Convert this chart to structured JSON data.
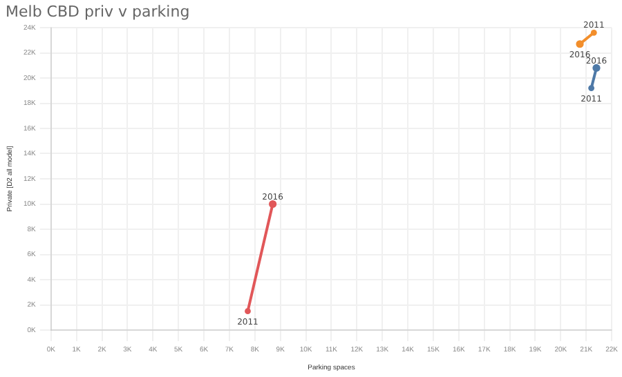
{
  "chart_data": {
    "type": "line",
    "title": "Melb CBD priv v parking",
    "xlabel": "Parking spaces",
    "ylabel": "Private [D2 all model]",
    "series": [
      {
        "color": "#e15759",
        "x": [
          7.72,
          8.7
        ],
        "values": [
          1.5,
          10
        ]
      },
      {
        "color": "#f28e2b",
        "x": [
          21.3,
          20.75
        ],
        "values": [
          23.6,
          22.7
        ]
      },
      {
        "color": "#4e79a7",
        "x": [
          21.2,
          21.4
        ],
        "values": [
          19.2,
          20.8
        ]
      }
    ],
    "annotations": [
      {
        "text": "2011",
        "x": 7.72,
        "y": 1.5
      },
      {
        "text": "2016",
        "x": 8.7,
        "y": 10
      },
      {
        "text": "2011",
        "x": 21.3,
        "y": 23.6
      },
      {
        "text": "2016",
        "x": 20.75,
        "y": 22.7
      },
      {
        "text": "2011",
        "x": 21.2,
        "y": 19.2
      },
      {
        "text": "2016",
        "x": 21.4,
        "y": 20.8
      }
    ],
    "xlim": [
      0,
      22
    ],
    "ylim": [
      0,
      24
    ],
    "xticks": [
      {
        "value": 0,
        "label": "0K"
      },
      {
        "value": 1,
        "label": "1K"
      },
      {
        "value": 2,
        "label": "2K"
      },
      {
        "value": 3,
        "label": "3K"
      },
      {
        "value": 4,
        "label": "4K"
      },
      {
        "value": 5,
        "label": "5K"
      },
      {
        "value": 6,
        "label": "6K"
      },
      {
        "value": 7,
        "label": "7K"
      },
      {
        "value": 8,
        "label": "8K"
      },
      {
        "value": 9,
        "label": "9K"
      },
      {
        "value": 10,
        "label": "10K"
      },
      {
        "value": 11,
        "label": "11K"
      },
      {
        "value": 12,
        "label": "12K"
      },
      {
        "value": 13,
        "label": "13K"
      },
      {
        "value": 14,
        "label": "14K"
      },
      {
        "value": 15,
        "label": "15K"
      },
      {
        "value": 16,
        "label": "16K"
      },
      {
        "value": 17,
        "label": "17K"
      },
      {
        "value": 18,
        "label": "18K"
      },
      {
        "value": 19,
        "label": "19K"
      },
      {
        "value": 20,
        "label": "20K"
      },
      {
        "value": 21,
        "label": "21K"
      },
      {
        "value": 22,
        "label": "22K"
      }
    ],
    "yticks": [
      {
        "value": 0,
        "label": "0K"
      },
      {
        "value": 2,
        "label": "2K"
      },
      {
        "value": 4,
        "label": "4K"
      },
      {
        "value": 6,
        "label": "6K"
      },
      {
        "value": 8,
        "label": "8K"
      },
      {
        "value": 10,
        "label": "10K"
      },
      {
        "value": 12,
        "label": "12K"
      },
      {
        "value": 14,
        "label": "14K"
      },
      {
        "value": 16,
        "label": "16K"
      },
      {
        "value": 18,
        "label": "18K"
      },
      {
        "value": 20,
        "label": "20K"
      },
      {
        "value": 22,
        "label": "22K"
      },
      {
        "value": 24,
        "label": "24K"
      }
    ],
    "grid": true,
    "legend": false,
    "marker": "circle"
  }
}
